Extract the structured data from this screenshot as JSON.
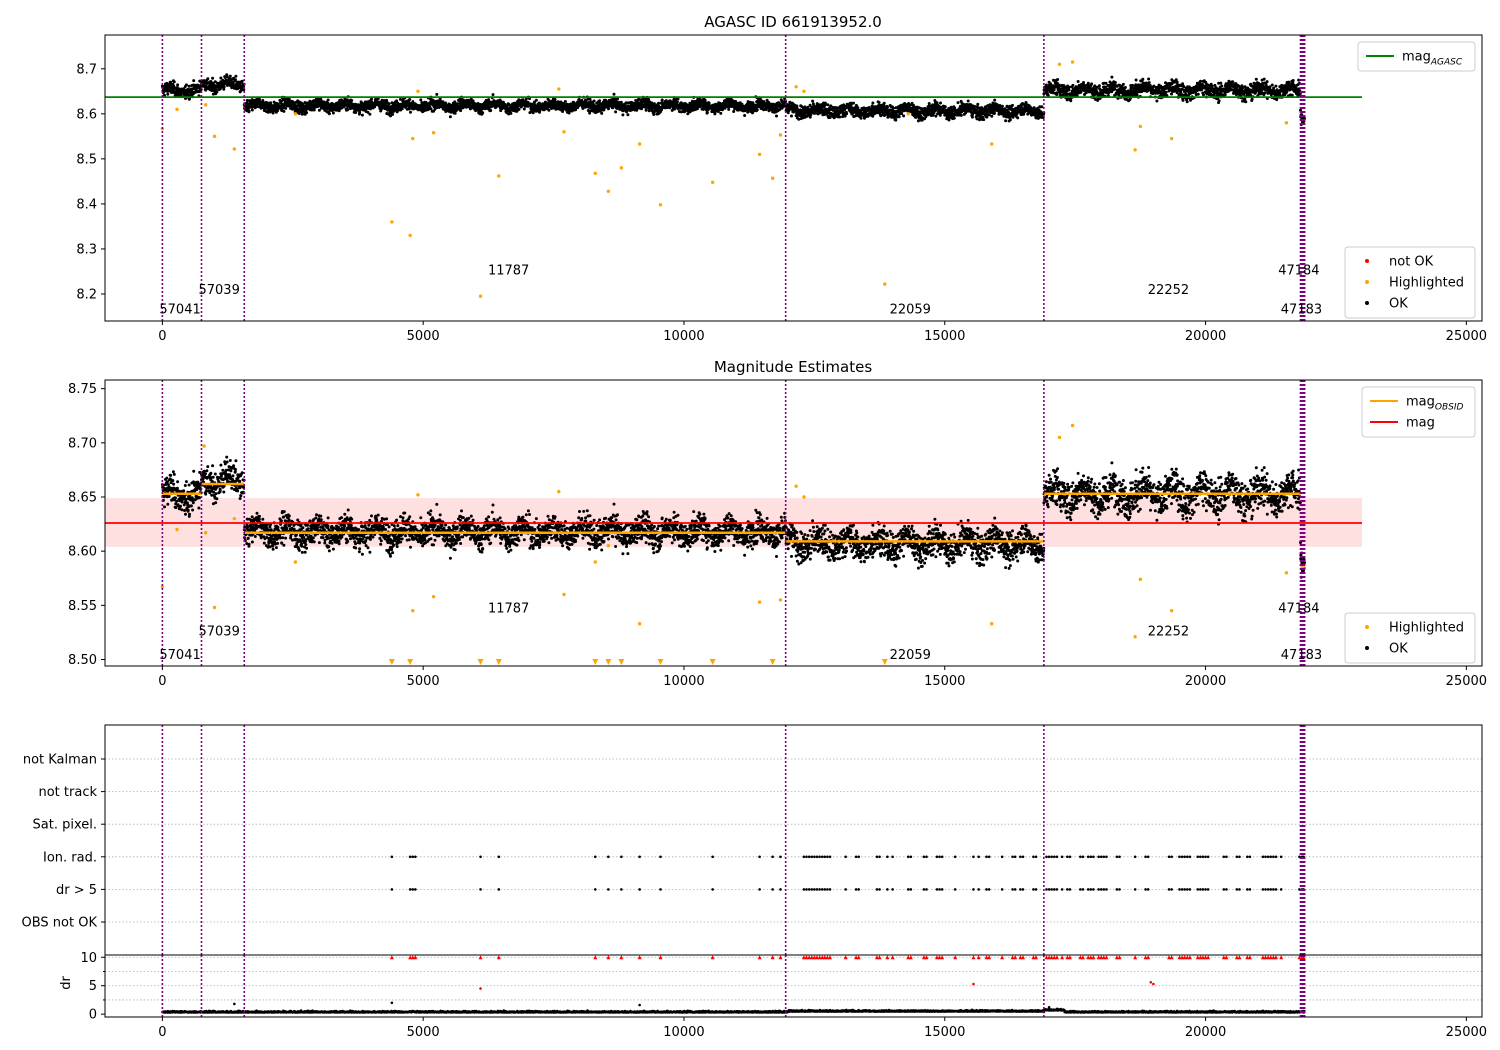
{
  "chart_data": [
    {
      "id": "top",
      "type": "scatter",
      "title": "AGASC ID 661913952.0",
      "xlim": [
        -1100,
        25300
      ],
      "ylim": [
        8.14,
        8.775
      ],
      "xticks": [
        0,
        5000,
        10000,
        15000,
        20000,
        25000
      ],
      "yticks": [
        8.2,
        8.3,
        8.4,
        8.5,
        8.6,
        8.7
      ],
      "ytick_labels": [
        "8.2",
        "8.3",
        "8.4",
        "8.5",
        "8.6",
        "8.7"
      ],
      "obs_boundaries": [
        0,
        750,
        1570,
        11950,
        16900,
        21820,
        21840,
        21860,
        21880,
        21900
      ],
      "reference_line": {
        "name": "mag",
        "subscript": "AGASC",
        "y": 8.637,
        "x0": -1100,
        "x1": 23000,
        "color": "#008000"
      },
      "segments": [
        {
          "x0": 0,
          "x1": 750,
          "mean": 8.652,
          "sd": 0.01
        },
        {
          "x0": 750,
          "x1": 1570,
          "mean": 8.665,
          "sd": 0.01
        },
        {
          "x0": 1570,
          "x1": 11950,
          "mean": 8.618,
          "sd": 0.009
        },
        {
          "x0": 11950,
          "x1": 16900,
          "mean": 8.607,
          "sd": 0.01
        },
        {
          "x0": 16900,
          "x1": 21820,
          "mean": 8.653,
          "sd": 0.012
        },
        {
          "x0": 21820,
          "x1": 21900,
          "mean": 8.595,
          "sd": 0.01
        }
      ],
      "highlighted": [
        [
          0,
          8.567
        ],
        [
          280,
          8.61
        ],
        [
          830,
          8.62
        ],
        [
          1000,
          8.55
        ],
        [
          1380,
          8.522
        ],
        [
          2550,
          8.6
        ],
        [
          4400,
          8.36
        ],
        [
          4750,
          8.33
        ],
        [
          4800,
          8.545
        ],
        [
          5200,
          8.558
        ],
        [
          6100,
          8.195
        ],
        [
          6450,
          8.462
        ],
        [
          7700,
          8.56
        ],
        [
          8300,
          8.468
        ],
        [
          8550,
          8.428
        ],
        [
          8800,
          8.48
        ],
        [
          9150,
          8.533
        ],
        [
          9550,
          8.398
        ],
        [
          10550,
          8.448
        ],
        [
          11450,
          8.51
        ],
        [
          11700,
          8.457
        ],
        [
          11850,
          8.553
        ],
        [
          13850,
          8.222
        ],
        [
          14300,
          8.6
        ],
        [
          15900,
          8.533
        ],
        [
          18650,
          8.52
        ],
        [
          18750,
          8.572
        ],
        [
          19350,
          8.545
        ],
        [
          21550,
          8.58
        ],
        [
          17200,
          8.71
        ],
        [
          17450,
          8.715
        ],
        [
          12150,
          8.66
        ],
        [
          12300,
          8.65
        ],
        [
          4900,
          8.65
        ],
        [
          7600,
          8.655
        ]
      ],
      "annotations": [
        {
          "text": "57041",
          "x": 0,
          "y": 8.168
        },
        {
          "text": "57039",
          "x": 750,
          "y": 8.211
        },
        {
          "text": "11787",
          "x": 6300,
          "y": 8.254
        },
        {
          "text": "22059",
          "x": 14000,
          "y": 8.168
        },
        {
          "text": "22252",
          "x": 18950,
          "y": 8.211
        },
        {
          "text": "47184",
          "x": 21450,
          "y": 8.254
        },
        {
          "text": "47183",
          "x": 21500,
          "y": 8.168
        }
      ],
      "legends": [
        {
          "position": "top-right",
          "entries": [
            {
              "label": "mag",
              "subscript": "AGASC",
              "kind": "line",
              "color": "#008000"
            }
          ]
        },
        {
          "position": "bottom-right",
          "entries": [
            {
              "label": "not OK",
              "kind": "dot",
              "color": "#ff0000"
            },
            {
              "label": "Highlighted",
              "kind": "dot",
              "color": "#ffa500"
            },
            {
              "label": "OK",
              "kind": "dot",
              "color": "#000000"
            }
          ]
        }
      ],
      "grid": false
    },
    {
      "id": "middle",
      "type": "scatter",
      "title": "Magnitude Estimates",
      "xlim": [
        -1100,
        25300
      ],
      "ylim": [
        8.494,
        8.758
      ],
      "xticks": [
        0,
        5000,
        10000,
        15000,
        20000,
        25000
      ],
      "yticks": [
        8.5,
        8.55,
        8.6,
        8.65,
        8.7,
        8.75
      ],
      "ytick_labels": [
        "8.50",
        "8.55",
        "8.60",
        "8.65",
        "8.70",
        "8.75"
      ],
      "obs_boundaries": [
        0,
        750,
        1570,
        11950,
        16900,
        21820,
        21840,
        21860,
        21880,
        21900
      ],
      "mean_line": {
        "name": "mag",
        "y": 8.626,
        "x0": -1100,
        "x1": 23000,
        "color": "#ff0000",
        "band": [
          8.604,
          8.649
        ]
      },
      "obsid_means": [
        {
          "x0": 0,
          "x1": 750,
          "y": 8.653
        },
        {
          "x0": 750,
          "x1": 1570,
          "y": 8.662
        },
        {
          "x0": 1570,
          "x1": 11950,
          "y": 8.617
        },
        {
          "x0": 11950,
          "x1": 16900,
          "y": 8.609
        },
        {
          "x0": 16900,
          "x1": 21820,
          "y": 8.653
        },
        {
          "x0": 21820,
          "x1": 21900,
          "y": 8.585
        }
      ],
      "segments": [
        {
          "x0": 0,
          "x1": 750,
          "mean": 8.652,
          "sd": 0.01
        },
        {
          "x0": 750,
          "x1": 1570,
          "mean": 8.665,
          "sd": 0.01
        },
        {
          "x0": 1570,
          "x1": 11950,
          "mean": 8.618,
          "sd": 0.009
        },
        {
          "x0": 11950,
          "x1": 16900,
          "mean": 8.607,
          "sd": 0.01
        },
        {
          "x0": 16900,
          "x1": 21820,
          "mean": 8.653,
          "sd": 0.012
        },
        {
          "x0": 21820,
          "x1": 21900,
          "mean": 8.595,
          "sd": 0.01
        }
      ],
      "highlighted": [
        [
          0,
          8.567
        ],
        [
          280,
          8.62
        ],
        [
          830,
          8.617
        ],
        [
          1000,
          8.548
        ],
        [
          1380,
          8.63
        ],
        [
          2550,
          8.59
        ],
        [
          4800,
          8.545
        ],
        [
          5200,
          8.558
        ],
        [
          7700,
          8.56
        ],
        [
          8300,
          8.59
        ],
        [
          8550,
          8.605
        ],
        [
          9150,
          8.533
        ],
        [
          11450,
          8.553
        ],
        [
          11850,
          8.555
        ],
        [
          15900,
          8.533
        ],
        [
          18650,
          8.521
        ],
        [
          18750,
          8.574
        ],
        [
          19350,
          8.545
        ],
        [
          21550,
          8.58
        ],
        [
          17200,
          8.705
        ],
        [
          17450,
          8.716
        ],
        [
          12150,
          8.66
        ],
        [
          12300,
          8.65
        ],
        [
          4900,
          8.652
        ],
        [
          7600,
          8.655
        ],
        [
          800,
          8.697
        ]
      ],
      "clipped_low": [
        4400,
        4750,
        6100,
        6450,
        8300,
        8550,
        8800,
        9550,
        10550,
        11700,
        13850
      ],
      "annotations": [
        {
          "text": "57041",
          "x": 0,
          "y": 8.505
        },
        {
          "text": "57039",
          "x": 750,
          "y": 8.527
        },
        {
          "text": "11787",
          "x": 6300,
          "y": 8.548
        },
        {
          "text": "22059",
          "x": 14000,
          "y": 8.505
        },
        {
          "text": "22252",
          "x": 18950,
          "y": 8.527
        },
        {
          "text": "47184",
          "x": 21450,
          "y": 8.548
        },
        {
          "text": "47183",
          "x": 21500,
          "y": 8.505
        }
      ],
      "legends": [
        {
          "position": "top-right",
          "entries": [
            {
              "label": "mag",
              "subscript": "OBSID",
              "kind": "line",
              "color": "#ffa500"
            },
            {
              "label": "mag",
              "kind": "line",
              "color": "#ff0000"
            }
          ]
        },
        {
          "position": "bottom-right",
          "entries": [
            {
              "label": "Highlighted",
              "kind": "dot",
              "color": "#ffa500"
            },
            {
              "label": "OK",
              "kind": "dot",
              "color": "#000000"
            }
          ]
        }
      ],
      "grid": false
    },
    {
      "id": "flags",
      "type": "scatter",
      "xlim": [
        -1100,
        25300
      ],
      "categories": [
        "OBS not OK",
        "dr > 5",
        "Ion. rad.",
        "Sat. pixel.",
        "not track",
        "not Kalman"
      ],
      "obs_boundaries": [
        0,
        750,
        1570,
        11950,
        16900,
        21820,
        21840,
        21860,
        21880,
        21900
      ],
      "flag_events": {
        "dr > 5": [
          4400,
          4750,
          4800,
          4850,
          6100,
          6450,
          8300,
          8550,
          8800,
          9150,
          9550,
          10550,
          11450,
          11700,
          11850,
          12300,
          12350,
          12400,
          12450,
          12500,
          12550,
          12600,
          12650,
          12700,
          12750,
          12800,
          13100,
          13300,
          13350,
          13700,
          13750,
          13900,
          14000,
          14300,
          14350,
          14600,
          14650,
          14850,
          14900,
          14950,
          15200,
          15550,
          15650,
          15800,
          15850,
          16100,
          16300,
          16350,
          16450,
          16500,
          16700,
          16750,
          16950,
          17000,
          17050,
          17100,
          17150,
          17250,
          17350,
          17400,
          17600,
          17650,
          17750,
          17800,
          17850,
          17950,
          18000,
          18050,
          18100,
          18300,
          18350,
          18650,
          18850,
          18900,
          19300,
          19350,
          19500,
          19550,
          19600,
          19650,
          19700,
          19850,
          19900,
          19950,
          20000,
          20050,
          20350,
          20400,
          20600,
          20650,
          20800,
          20850,
          21100,
          21150,
          21200,
          21250,
          21300,
          21350,
          21450,
          21800,
          21850,
          21880
        ],
        "Ion. rad.": [
          4400,
          4750,
          4800,
          4850,
          6100,
          6450,
          8300,
          8550,
          8800,
          9150,
          9550,
          10550,
          11450,
          11700,
          11850,
          12300,
          12350,
          12400,
          12450,
          12500,
          12550,
          12600,
          12650,
          12700,
          12750,
          12800,
          13100,
          13300,
          13350,
          13700,
          13750,
          13900,
          14000,
          14300,
          14350,
          14600,
          14650,
          14850,
          14900,
          14950,
          15200,
          15550,
          15650,
          15800,
          15850,
          16100,
          16300,
          16350,
          16450,
          16500,
          16700,
          16750,
          16950,
          17000,
          17050,
          17100,
          17150,
          17250,
          17350,
          17400,
          17600,
          17650,
          17750,
          17800,
          17850,
          17950,
          18000,
          18050,
          18100,
          18300,
          18350,
          18650,
          18850,
          18900,
          19300,
          19350,
          19500,
          19550,
          19600,
          19650,
          19700,
          19850,
          19900,
          19950,
          20000,
          20050,
          20350,
          20400,
          20600,
          20650,
          20800,
          20850,
          21100,
          21150,
          21200,
          21250,
          21300,
          21350,
          21450,
          21800,
          21850,
          21880
        ]
      },
      "grid": true
    },
    {
      "id": "dr",
      "type": "scatter",
      "ylabel": "dr",
      "xlim": [
        -1100,
        25300
      ],
      "ylim": [
        -0.5,
        10.4
      ],
      "xticks": [
        0,
        5000,
        10000,
        15000,
        20000,
        25000
      ],
      "yticks": [
        0,
        5,
        10
      ],
      "ytick_labels": [
        "0",
        "5",
        "10"
      ],
      "obs_boundaries": [
        0,
        750,
        1570,
        11950,
        16900,
        21820,
        21840,
        21860,
        21880,
        21900
      ],
      "baseline": {
        "mean": 0.3,
        "spread": 0.25
      },
      "outliers": [
        [
          6100,
          4.5
        ],
        [
          15550,
          5.3
        ],
        [
          18950,
          5.6
        ],
        [
          19000,
          5.3
        ],
        [
          4400,
          2.0
        ],
        [
          9150,
          1.6
        ],
        [
          1380,
          1.8
        ],
        [
          17000,
          1.2
        ]
      ],
      "capped_value": 10,
      "grid": true
    }
  ]
}
